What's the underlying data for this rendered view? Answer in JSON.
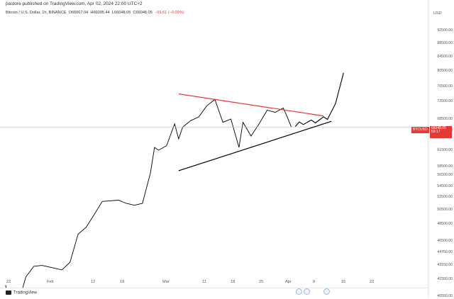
{
  "header": {
    "publisher": "pastore published on TradingView.com, Apr 02, 2024 22:00 UTC+2",
    "symbol_desc": "Bitcoin / U.S. Dollar, 1h, BINANCE",
    "open": "O66067.04",
    "high": "H66095.44",
    "low": "L66048.05",
    "close": "C66048.05",
    "change": "−59.61 (−0.09%)"
  },
  "price_tag": {
    "symbol": "BTCUSD",
    "price": "66048.05",
    "countdown": "59:17"
  },
  "footer": {
    "brand": "TradingView"
  },
  "colors": {
    "up": "#000000",
    "resistance": "#e53935",
    "support": "#000000",
    "tag": "#e53935"
  },
  "chart_data": {
    "type": "line",
    "title": "Bitcoin / U.S. Dollar, 1h, BINANCE",
    "currency": "USD",
    "ylim": [
      40550,
      96700
    ],
    "y_ticks": [
      "92500.00",
      "88500.00",
      "84500.00",
      "80500.00",
      "76500.00",
      "72500.00",
      "68500.00",
      "65000.00",
      "61500.00",
      "58500.00",
      "56500.00",
      "54500.00",
      "52500.00",
      "50500.00",
      "48500.00",
      "46500.00",
      "44750.00",
      "43150.00",
      "41550.00",
      "40550.00"
    ],
    "x_ticks": [
      "22",
      "Feb",
      "12",
      "19",
      "Mar",
      "11",
      "18",
      "25",
      "Apr",
      "8",
      "15",
      "22"
    ],
    "series": [
      {
        "values": [
          {
            "x": "2024-01-22",
            "y": 41200
          },
          {
            "x": "2024-01-23",
            "y": 39500
          },
          {
            "x": "2024-01-25",
            "y": 40000
          },
          {
            "x": "2024-01-27",
            "y": 41800
          },
          {
            "x": "2024-01-29",
            "y": 43000
          },
          {
            "x": "2024-01-31",
            "y": 43100
          },
          {
            "x": "2024-02-02",
            "y": 42900
          },
          {
            "x": "2024-02-05",
            "y": 42600
          },
          {
            "x": "2024-02-07",
            "y": 43500
          },
          {
            "x": "2024-02-09",
            "y": 47300
          },
          {
            "x": "2024-02-11",
            "y": 48100
          },
          {
            "x": "2024-02-13",
            "y": 49800
          },
          {
            "x": "2024-02-15",
            "y": 51800
          },
          {
            "x": "2024-02-17",
            "y": 51900
          },
          {
            "x": "2024-02-19",
            "y": 52000
          },
          {
            "x": "2024-02-21",
            "y": 51500
          },
          {
            "x": "2024-02-23",
            "y": 51200
          },
          {
            "x": "2024-02-25",
            "y": 51500
          },
          {
            "x": "2024-02-27",
            "y": 57000
          },
          {
            "x": "2024-02-28",
            "y": 62000
          },
          {
            "x": "2024-02-29",
            "y": 61500
          },
          {
            "x": "2024-03-02",
            "y": 62300
          },
          {
            "x": "2024-03-04",
            "y": 67000
          },
          {
            "x": "2024-03-05",
            "y": 63500
          },
          {
            "x": "2024-03-06",
            "y": 66000
          },
          {
            "x": "2024-03-08",
            "y": 68000
          },
          {
            "x": "2024-03-10",
            "y": 69000
          },
          {
            "x": "2024-03-12",
            "y": 71500
          },
          {
            "x": "2024-03-14",
            "y": 73000
          },
          {
            "x": "2024-03-16",
            "y": 67500
          },
          {
            "x": "2024-03-18",
            "y": 68500
          },
          {
            "x": "2024-03-20",
            "y": 62000
          },
          {
            "x": "2024-03-21",
            "y": 67500
          },
          {
            "x": "2024-03-23",
            "y": 64000
          },
          {
            "x": "2024-03-25",
            "y": 67000
          },
          {
            "x": "2024-03-27",
            "y": 70500
          },
          {
            "x": "2024-03-29",
            "y": 70000
          },
          {
            "x": "2024-03-31",
            "y": 71000
          },
          {
            "x": "2024-04-01",
            "y": 69000
          },
          {
            "x": "2024-04-02",
            "y": 66048
          }
        ]
      }
    ],
    "annotations": {
      "resistance": [
        {
          "x": "2024-03-05",
          "y": 74500
        },
        {
          "x": "2024-04-10",
          "y": 69200
        }
      ],
      "support": [
        {
          "x": "2024-03-05",
          "y": 57500
        },
        {
          "x": "2024-04-12",
          "y": 67800
        }
      ],
      "projection": [
        {
          "x": "2024-04-03",
          "y": 66200
        },
        {
          "x": "2024-04-04",
          "y": 67600
        },
        {
          "x": "2024-04-05",
          "y": 66800
        },
        {
          "x": "2024-04-07",
          "y": 68200
        },
        {
          "x": "2024-04-08",
          "y": 67300
        },
        {
          "x": "2024-04-10",
          "y": 69000
        },
        {
          "x": "2024-04-11",
          "y": 68400
        },
        {
          "x": "2024-04-13",
          "y": 72000
        },
        {
          "x": "2024-04-15",
          "y": 80000
        }
      ]
    }
  }
}
